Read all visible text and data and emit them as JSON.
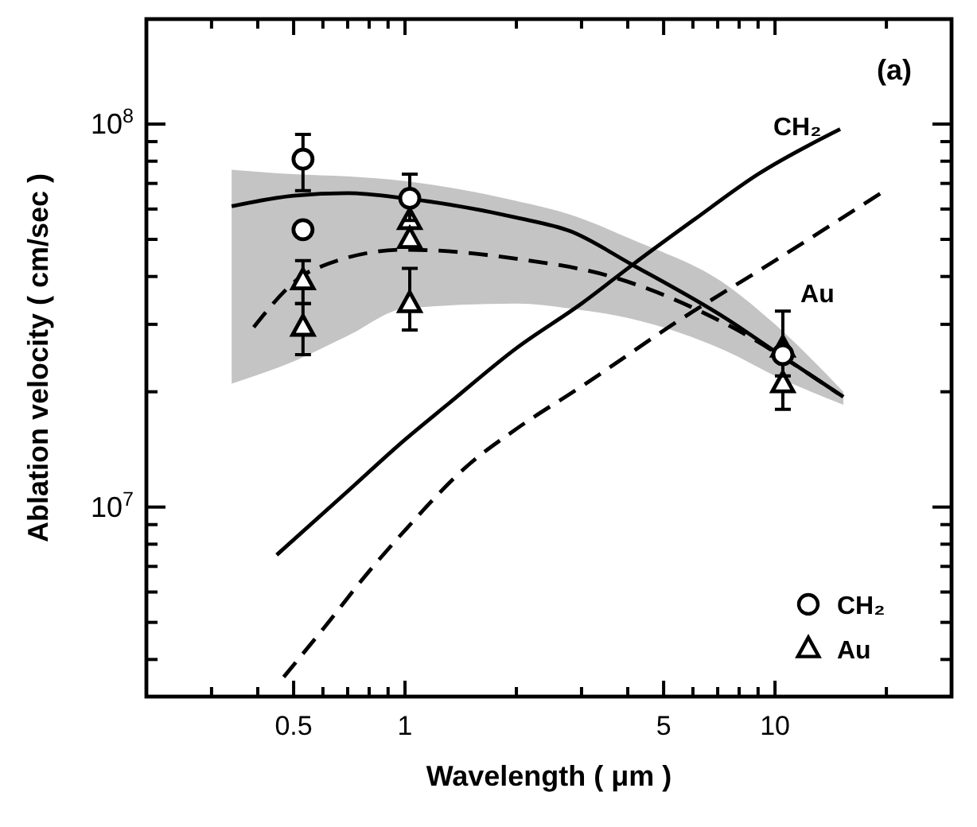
{
  "chart_data": {
    "type": "line",
    "xlabel": "Wavelength ( μm )",
    "ylabel": "Ablation velocity ( cm/sec )",
    "log": "xy",
    "grid": false,
    "legend": "bottom right",
    "xlim": [
      0.2,
      30
    ],
    "ylim": [
      3200000.0,
      188000000.0
    ],
    "xticks": [
      {
        "value": 0.3,
        "label": null
      },
      {
        "value": 0.4,
        "label": null
      },
      0.5,
      {
        "value": 0.6,
        "label": null
      },
      {
        "value": 0.7,
        "label": null
      },
      {
        "value": 0.8,
        "label": null
      },
      {
        "value": 0.9,
        "label": null
      },
      1,
      {
        "value": 2,
        "label": null
      },
      {
        "value": 3,
        "label": null
      },
      {
        "value": 4,
        "label": null
      },
      5,
      {
        "value": 6,
        "label": null
      },
      {
        "value": 7,
        "label": null
      },
      {
        "value": 8,
        "label": null
      },
      {
        "value": 9,
        "label": null
      },
      10,
      {
        "value": 20,
        "label": null
      }
    ],
    "yticks": [
      {
        "value": 4000000.0,
        "label": null
      },
      {
        "value": 5000000.0,
        "label": null
      },
      {
        "value": 6000000.0,
        "label": null
      },
      {
        "value": 7000000.0,
        "label": null
      },
      {
        "value": 8000000.0,
        "label": null
      },
      {
        "value": 9000000.0,
        "label": null
      },
      {
        "value": 10000000.0,
        "label": "10$^{7}$"
      },
      {
        "value": 20000000.0,
        "label": null
      },
      {
        "value": 30000000.0,
        "label": null
      },
      {
        "value": 40000000.0,
        "label": null
      },
      {
        "value": 50000000.0,
        "label": null
      },
      {
        "value": 60000000.0,
        "label": null
      },
      {
        "value": 70000000.0,
        "label": null
      },
      {
        "value": 80000000.0,
        "label": null
      },
      {
        "value": 90000000.0,
        "label": null
      },
      {
        "value": 100000000.0,
        "label": "10$^{8}$"
      }
    ],
    "annotations": [
      "(a)"
    ],
    "series": [
      {
        "color": "#000000",
        "line_style": "solid",
        "x": [
          0.34,
          0.5,
          0.7,
          1,
          2,
          2.8,
          4.1,
          7.4,
          10,
          15.3
        ],
        "values": [
          61000000.0,
          65000000.0,
          66000000.0,
          64000000.0,
          57000000.0,
          52500000.0,
          43000000.0,
          31000000.0,
          25500000.0,
          19400000.0
        ],
        "upper": [
          76000000.0,
          74000000.0,
          73000000.0,
          71000000.0,
          63000000.0,
          58000000.0,
          50000000.0,
          38000000.0,
          30000000.0,
          20000000.0
        ],
        "lower": [
          21000000.0,
          24000000.0,
          28000000.0,
          33000000.0,
          34000000.0,
          33000000.0,
          31000000.0,
          25500000.0,
          22000000.0,
          18500000.0
        ]
      },
      {
        "color": "#000000",
        "line_style": "dashed",
        "x": [
          0.39,
          0.56,
          1,
          2,
          3.6,
          7.4,
          14.8
        ],
        "values": [
          29500000.0,
          41500000.0,
          47000000.0,
          44500000.0,
          40000000.0,
          30000000.0,
          19800000.0
        ]
      },
      {
        "name": "CH₂",
        "color": "#000000",
        "line_style": "solid",
        "x": [
          0.45,
          0.7,
          1,
          1.3,
          2,
          3,
          4.13,
          6,
          9,
          15
        ],
        "values": [
          7500000.0,
          11000000.0,
          15000000.0,
          18500000.0,
          26000000.0,
          34000000.0,
          43000000.0,
          56000000.0,
          74000000.0,
          97000000.0
        ]
      },
      {
        "name": "Au",
        "color": "#000000",
        "line_style": "dashed",
        "x": [
          0.47,
          0.6,
          0.8,
          1,
          1.5,
          2,
          3.08,
          5.3,
          10,
          19.8
        ],
        "values": [
          3600000.0,
          4800000.0,
          6800000.0,
          8700000.0,
          13000000.0,
          16000000.0,
          21000000.0,
          30000000.0,
          44000000.0,
          67000000.0
        ]
      },
      {
        "type": "scatter",
        "name": "CH₂",
        "color": "#000000",
        "marker": "circle",
        "x": [
          0.53,
          0.53,
          1.03,
          10.5
        ],
        "values": [
          81000000.0,
          53000000.0,
          64000000.0,
          25000000.0
        ],
        "errors": [
          [
            67000000.0,
            94000000.0
          ],
          null,
          [
            56000000.0,
            74000000.0
          ],
          [
            22000000.0,
            32500000.0
          ]
        ]
      },
      {
        "type": "scatter",
        "name": "Au",
        "color": "#000000",
        "marker": "triangle",
        "x": [
          0.53,
          0.53,
          1.03,
          1.03,
          1.03,
          10.5,
          10.5
        ],
        "values": [
          39000000.0,
          29500000.0,
          56000000.0,
          50000000.0,
          34000000.0,
          26000000.0,
          21000000.0
        ],
        "errors": [
          [
            34000000.0,
            44000000.0
          ],
          [
            25000000.0,
            34000000.0
          ],
          null,
          null,
          [
            29000000.0,
            42000000.0
          ],
          null,
          [
            18000000.0,
            25000000.0
          ]
        ]
      }
    ]
  }
}
